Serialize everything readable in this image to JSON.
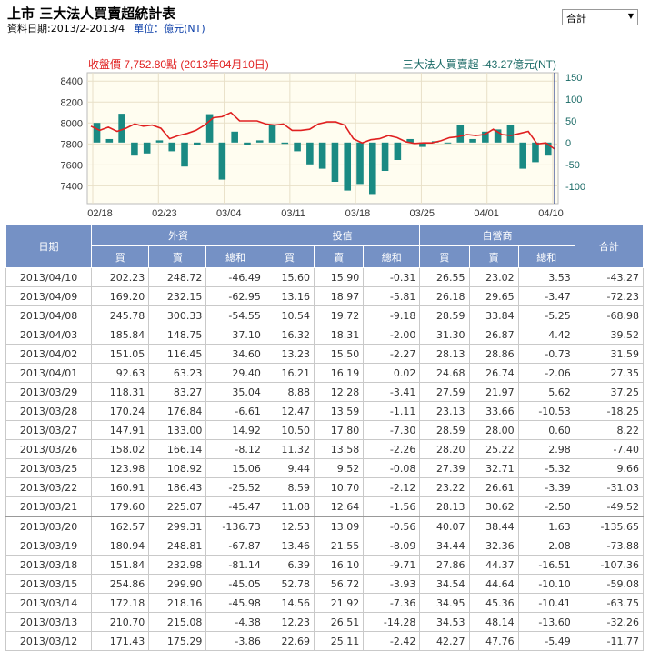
{
  "header": {
    "title": "上市 三大法人買賣超統計表",
    "date_range": "資料日期:2013/2-2013/4",
    "unit": "單位：億元(NT)"
  },
  "select": {
    "value": "合計"
  },
  "chart_data": {
    "type": "bar+line",
    "title_left": "收盤價 7,752.80點 (2013年04月10日)",
    "title_right": "三大法人買賣超 -43.27億元(NT)",
    "x_tick_labels": [
      "02/18",
      "02/23",
      "03/04",
      "03/11",
      "03/18",
      "03/25",
      "04/01",
      "04/10"
    ],
    "y_left_ticks": [
      8400,
      8200,
      8000,
      7800,
      7600,
      7400
    ],
    "y_right_ticks": [
      150,
      100,
      50,
      0,
      -50,
      -100
    ],
    "ylim_left": [
      7230,
      8480
    ],
    "ylim_right": [
      -140,
      160
    ],
    "series": [
      {
        "axis": "right",
        "kind": "bar",
        "color": "#1a8a83",
        "values": [
          45,
          8,
          66,
          -30,
          -25,
          5,
          -20,
          -55,
          -5,
          65,
          -85,
          25,
          -5,
          5,
          40,
          -3,
          -20,
          -50,
          -60,
          -90,
          -110,
          -95,
          -118,
          -65,
          -40,
          8,
          -10,
          3,
          0,
          40,
          8,
          25,
          30,
          40,
          -60,
          -45,
          -30
        ]
      },
      {
        "axis": "left",
        "kind": "line",
        "color": "#e02020",
        "values": [
          7970,
          7930,
          7960,
          7920,
          7950,
          7990,
          7970,
          7980,
          7950,
          7850,
          7880,
          7900,
          7930,
          7980,
          8050,
          8060,
          8100,
          8020,
          8020,
          8020,
          7990,
          7980,
          7990,
          7930,
          7930,
          7940,
          7990,
          8010,
          8010,
          7980,
          7850,
          7810,
          7840,
          7850,
          7880,
          7860,
          7820,
          7805,
          7810,
          7810,
          7830,
          7860,
          7870,
          7890,
          7880,
          7890,
          7940,
          7890,
          7880,
          7900,
          7920,
          7800,
          7810,
          7752
        ]
      }
    ]
  },
  "table": {
    "group_headers": [
      "日期",
      "外資",
      "投信",
      "自營商",
      "合計"
    ],
    "sub_headers": [
      "買",
      "賣",
      "總和",
      "買",
      "賣",
      "總和",
      "買",
      "賣",
      "總和"
    ],
    "rows": [
      [
        "2013/04/10",
        "202.23",
        "248.72",
        "-46.49",
        "15.60",
        "15.90",
        "-0.31",
        "26.55",
        "23.02",
        "3.53",
        "-43.27"
      ],
      [
        "2013/04/09",
        "169.20",
        "232.15",
        "-62.95",
        "13.16",
        "18.97",
        "-5.81",
        "26.18",
        "29.65",
        "-3.47",
        "-72.23"
      ],
      [
        "2013/04/08",
        "245.78",
        "300.33",
        "-54.55",
        "10.54",
        "19.72",
        "-9.18",
        "28.59",
        "33.84",
        "-5.25",
        "-68.98"
      ],
      [
        "2013/04/03",
        "185.84",
        "148.75",
        "37.10",
        "16.32",
        "18.31",
        "-2.00",
        "31.30",
        "26.87",
        "4.42",
        "39.52"
      ],
      [
        "2013/04/02",
        "151.05",
        "116.45",
        "34.60",
        "13.23",
        "15.50",
        "-2.27",
        "28.13",
        "28.86",
        "-0.73",
        "31.59"
      ],
      [
        "2013/04/01",
        "92.63",
        "63.23",
        "29.40",
        "16.21",
        "16.19",
        "0.02",
        "24.68",
        "26.74",
        "-2.06",
        "27.35"
      ],
      [
        "2013/03/29",
        "118.31",
        "83.27",
        "35.04",
        "8.88",
        "12.28",
        "-3.41",
        "27.59",
        "21.97",
        "5.62",
        "37.25"
      ],
      [
        "2013/03/28",
        "170.24",
        "176.84",
        "-6.61",
        "12.47",
        "13.59",
        "-1.11",
        "23.13",
        "33.66",
        "-10.53",
        "-18.25"
      ],
      [
        "2013/03/27",
        "147.91",
        "133.00",
        "14.92",
        "10.50",
        "17.80",
        "-7.30",
        "28.59",
        "28.00",
        "0.60",
        "8.22"
      ],
      [
        "2013/03/26",
        "158.02",
        "166.14",
        "-8.12",
        "11.32",
        "13.58",
        "-2.26",
        "28.20",
        "25.22",
        "2.98",
        "-7.40"
      ],
      [
        "2013/03/25",
        "123.98",
        "108.92",
        "15.06",
        "9.44",
        "9.52",
        "-0.08",
        "27.39",
        "32.71",
        "-5.32",
        "9.66"
      ],
      [
        "2013/03/22",
        "160.91",
        "186.43",
        "-25.52",
        "8.59",
        "10.70",
        "-2.12",
        "23.22",
        "26.61",
        "-3.39",
        "-31.03"
      ],
      [
        "2013/03/21",
        "179.60",
        "225.07",
        "-45.47",
        "11.08",
        "12.64",
        "-1.56",
        "28.13",
        "30.62",
        "-2.50",
        "-49.52"
      ],
      [
        "2013/03/20",
        "162.57",
        "299.31",
        "-136.73",
        "12.53",
        "13.09",
        "-0.56",
        "40.07",
        "38.44",
        "1.63",
        "-135.65"
      ],
      [
        "2013/03/19",
        "180.94",
        "248.81",
        "-67.87",
        "13.46",
        "21.55",
        "-8.09",
        "34.44",
        "32.36",
        "2.08",
        "-73.88"
      ],
      [
        "2013/03/18",
        "151.84",
        "232.98",
        "-81.14",
        "6.39",
        "16.10",
        "-9.71",
        "27.86",
        "44.37",
        "-16.51",
        "-107.36"
      ],
      [
        "2013/03/15",
        "254.86",
        "299.90",
        "-45.05",
        "52.78",
        "56.72",
        "-3.93",
        "34.54",
        "44.64",
        "-10.10",
        "-59.08"
      ],
      [
        "2013/03/14",
        "172.18",
        "218.16",
        "-45.98",
        "14.56",
        "21.92",
        "-7.36",
        "34.95",
        "45.36",
        "-10.41",
        "-63.75"
      ],
      [
        "2013/03/13",
        "210.70",
        "215.08",
        "-4.38",
        "12.23",
        "26.51",
        "-14.28",
        "34.53",
        "48.14",
        "-13.60",
        "-32.26"
      ],
      [
        "2013/03/12",
        "171.43",
        "175.29",
        "-3.86",
        "22.69",
        "25.11",
        "-2.42",
        "42.27",
        "47.76",
        "-5.49",
        "-11.77"
      ]
    ]
  }
}
